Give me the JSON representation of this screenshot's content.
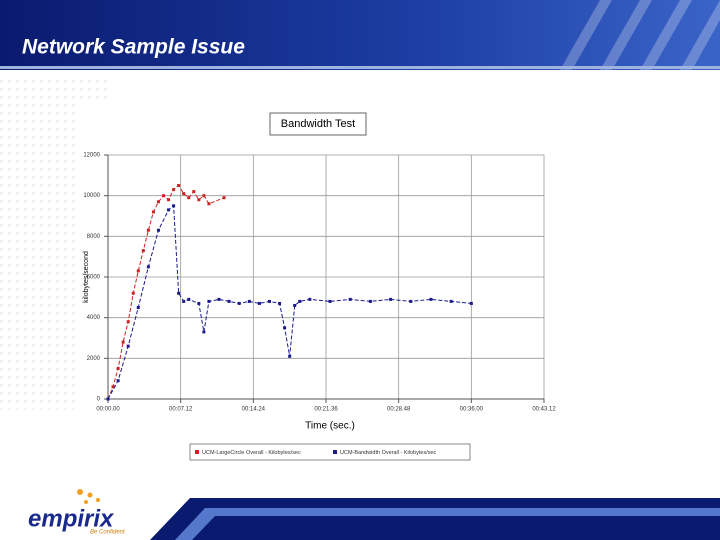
{
  "slide_title": "Network Sample Issue",
  "logo": {
    "name": "empirix",
    "tagline": "Be Confident"
  },
  "chart_data": {
    "type": "line",
    "title": "Bandwidth Test",
    "x_label": "Time (sec.)",
    "y_label": "kilobytes/second",
    "xlim": [
      0,
      43.2
    ],
    "ylim": [
      0,
      12000
    ],
    "xticks": [
      {
        "value": 0,
        "label": "00:00.00"
      },
      {
        "value": 7.2,
        "label": "00:07.12"
      },
      {
        "value": 14.4,
        "label": "00:14.24"
      },
      {
        "value": 21.6,
        "label": "00:21.36"
      },
      {
        "value": 28.8,
        "label": "00:28.48"
      },
      {
        "value": 36,
        "label": "00:36.00"
      },
      {
        "value": 43.2,
        "label": "00:43.12"
      }
    ],
    "yticks": [
      0,
      2000,
      4000,
      6000,
      8000,
      10000,
      12000
    ],
    "grid": true,
    "legend": "bottom",
    "series": [
      {
        "name": "UCM-LargeCircle Overall - Kilobytes/sec",
        "color": "#cc2222",
        "x": [
          0,
          0.5,
          1,
          1.5,
          2,
          2.5,
          3,
          3.5,
          4,
          4.5,
          5,
          5.5,
          6,
          6.5,
          7,
          7.5,
          8,
          8.5,
          9,
          9.5,
          10,
          11.5
        ],
        "values": [
          0,
          600,
          1500,
          2800,
          3800,
          5200,
          6300,
          7300,
          8300,
          9200,
          9700,
          10000,
          9800,
          10300,
          10500,
          10100,
          9900,
          10200,
          9800,
          10000,
          9600,
          9900
        ]
      },
      {
        "name": "UCM-Bandwidth Overall - Kilobytes/sec",
        "color": "#1a1a8c",
        "x": [
          0,
          1,
          2,
          3,
          4,
          5,
          6,
          6.5,
          7,
          7.5,
          8,
          9,
          9.5,
          10,
          11,
          12,
          13,
          14,
          15,
          16,
          17,
          17.5,
          18,
          18.5,
          19,
          20,
          22,
          24,
          26,
          28,
          30,
          32,
          34,
          36
        ],
        "values": [
          0,
          900,
          2600,
          4500,
          6500,
          8300,
          9300,
          9500,
          5200,
          4800,
          4900,
          4700,
          3300,
          4800,
          4900,
          4800,
          4700,
          4800,
          4700,
          4800,
          4700,
          3500,
          2100,
          4600,
          4800,
          4900,
          4800,
          4900,
          4800,
          4900,
          4800,
          4900,
          4800,
          4700
        ]
      }
    ]
  }
}
